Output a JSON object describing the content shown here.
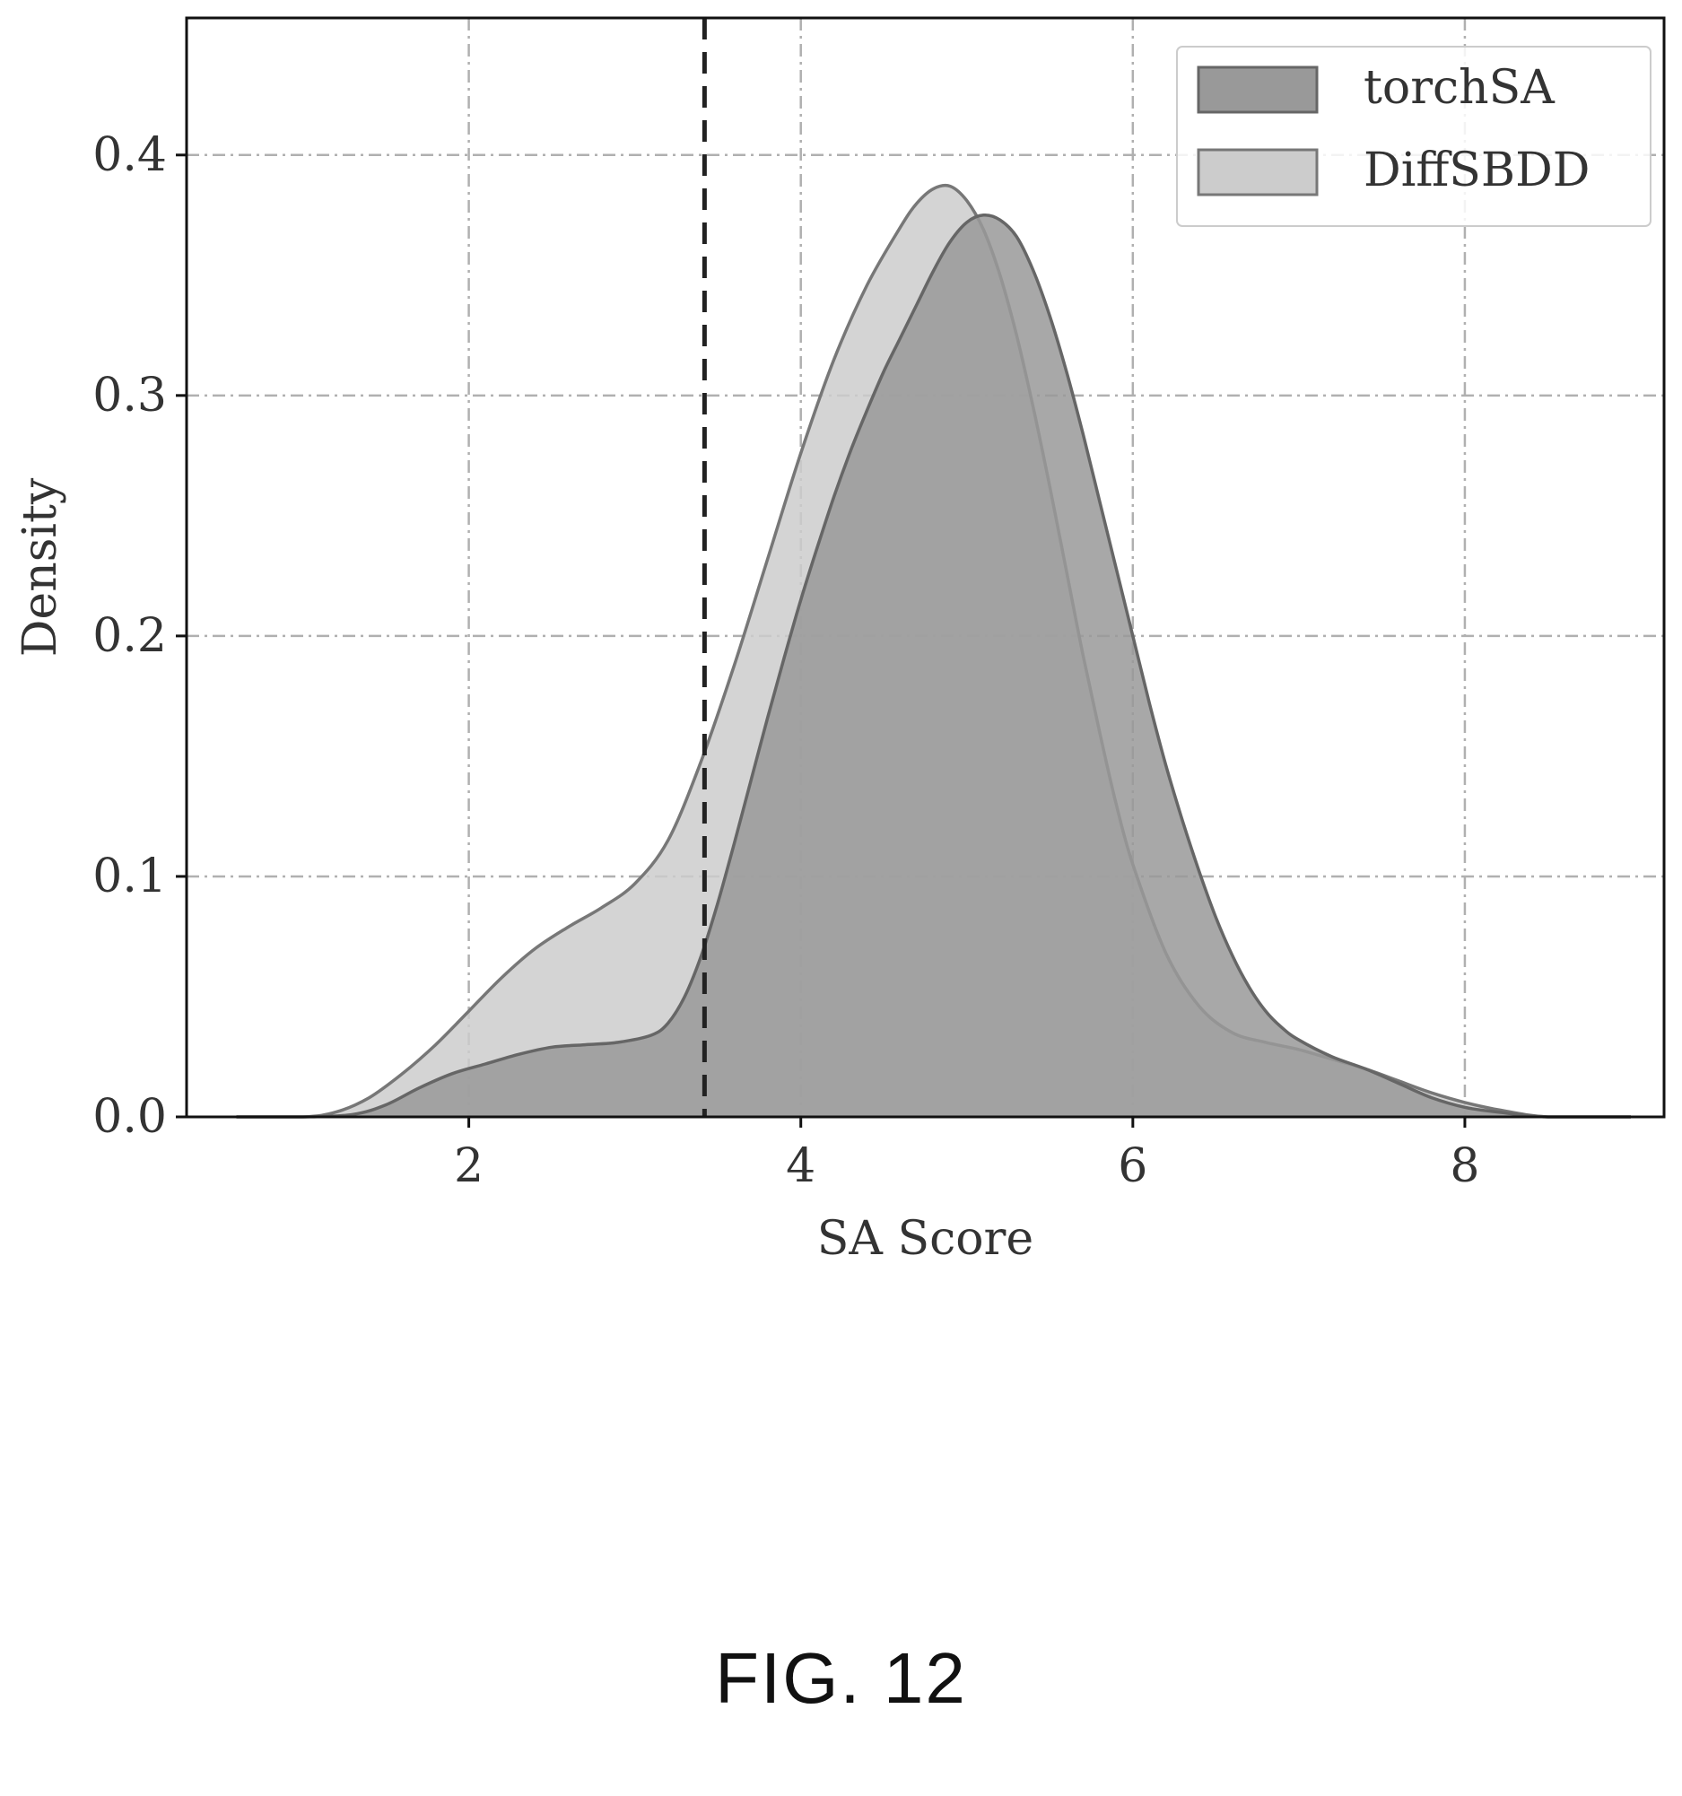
{
  "figure_label": "FIG. 12",
  "chart_data": {
    "type": "area",
    "xlabel": "SA Score",
    "ylabel": "Density",
    "xlim": [
      0.3,
      9.2
    ],
    "ylim": [
      0,
      0.457
    ],
    "xticks": [
      2,
      4,
      6,
      8
    ],
    "yticks": [
      0.0,
      0.1,
      0.2,
      0.3,
      0.4
    ],
    "ytick_labels": [
      "0.0",
      "0.1",
      "0.2",
      "0.3",
      "0.4"
    ],
    "grid": true,
    "legend_position": "top-right",
    "reference_line": {
      "x": 3.42,
      "style": "dashed"
    },
    "series": [
      {
        "name": "torchSA",
        "fill": "#999999",
        "stroke": "#666666",
        "x": [
          0.6,
          1.0,
          1.3,
          1.5,
          1.7,
          1.9,
          2.1,
          2.3,
          2.5,
          2.7,
          2.9,
          3.1,
          3.2,
          3.3,
          3.4,
          3.5,
          3.6,
          3.7,
          3.8,
          3.9,
          4.0,
          4.1,
          4.2,
          4.3,
          4.4,
          4.5,
          4.6,
          4.7,
          4.8,
          4.9,
          5.0,
          5.1,
          5.2,
          5.3,
          5.4,
          5.5,
          5.6,
          5.7,
          5.8,
          5.9,
          6.0,
          6.1,
          6.2,
          6.3,
          6.4,
          6.5,
          6.6,
          6.7,
          6.8,
          6.9,
          7.0,
          7.2,
          7.4,
          7.6,
          7.8,
          8.0,
          8.2,
          8.5,
          9.0
        ],
        "y": [
          0.0,
          0.0,
          0.001,
          0.005,
          0.012,
          0.018,
          0.022,
          0.026,
          0.029,
          0.03,
          0.031,
          0.034,
          0.039,
          0.05,
          0.067,
          0.089,
          0.114,
          0.14,
          0.166,
          0.191,
          0.215,
          0.237,
          0.258,
          0.277,
          0.294,
          0.31,
          0.324,
          0.338,
          0.352,
          0.364,
          0.372,
          0.375,
          0.373,
          0.366,
          0.352,
          0.333,
          0.31,
          0.284,
          0.256,
          0.228,
          0.2,
          0.172,
          0.146,
          0.123,
          0.102,
          0.083,
          0.067,
          0.054,
          0.044,
          0.037,
          0.032,
          0.025,
          0.02,
          0.014,
          0.008,
          0.004,
          0.002,
          0.0,
          0.0
        ]
      },
      {
        "name": "DiffSBDD",
        "fill": "#cccccc",
        "stroke": "#777777",
        "x": [
          0.6,
          1.0,
          1.2,
          1.4,
          1.6,
          1.8,
          2.0,
          2.2,
          2.4,
          2.6,
          2.8,
          3.0,
          3.2,
          3.4,
          3.6,
          3.8,
          4.0,
          4.2,
          4.4,
          4.6,
          4.7,
          4.8,
          4.9,
          5.0,
          5.1,
          5.2,
          5.3,
          5.4,
          5.5,
          5.6,
          5.7,
          5.8,
          5.9,
          6.0,
          6.2,
          6.4,
          6.6,
          6.8,
          7.0,
          7.2,
          7.4,
          7.6,
          7.8,
          8.0,
          8.2,
          8.5,
          9.0
        ],
        "y": [
          0.0,
          0.0,
          0.002,
          0.008,
          0.018,
          0.03,
          0.044,
          0.058,
          0.07,
          0.079,
          0.087,
          0.097,
          0.115,
          0.148,
          0.188,
          0.232,
          0.276,
          0.315,
          0.346,
          0.37,
          0.38,
          0.386,
          0.387,
          0.381,
          0.369,
          0.35,
          0.325,
          0.295,
          0.262,
          0.227,
          0.192,
          0.16,
          0.13,
          0.105,
          0.068,
          0.046,
          0.035,
          0.031,
          0.028,
          0.024,
          0.02,
          0.015,
          0.01,
          0.006,
          0.003,
          0.0,
          0.0
        ]
      }
    ]
  }
}
